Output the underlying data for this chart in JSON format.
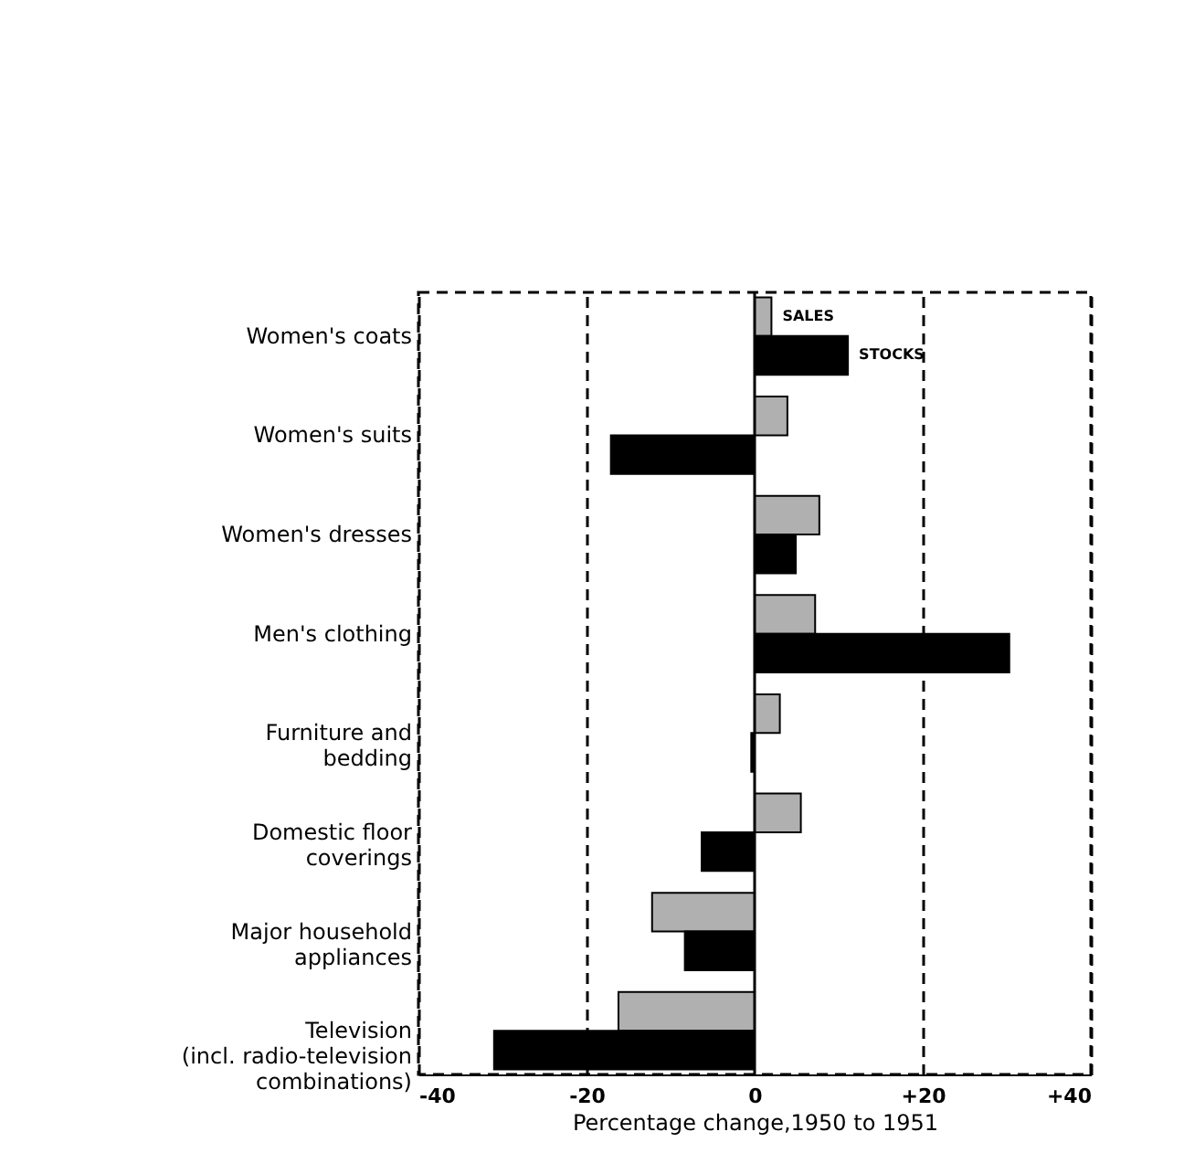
{
  "chart_data": {
    "type": "bar",
    "orientation": "horizontal",
    "xlabel": "Percentage change,1950 to 1951",
    "categories": [
      "Women's coats",
      "Women's suits",
      "Women's dresses",
      "Men's clothing",
      "Furniture and\nbedding",
      "Domestic floor\ncoverings",
      "Major household\nappliances",
      "Television\n(incl. radio-television\ncombinations)"
    ],
    "series": [
      {
        "name": "SALES",
        "color": "#b0b0b0",
        "values": [
          2.0,
          3.9,
          7.7,
          7.2,
          3.0,
          5.5,
          -12.2,
          -16.2
        ]
      },
      {
        "name": "STOCKS",
        "color": "#000000",
        "values": [
          11.1,
          -17.1,
          4.9,
          30.3,
          -0.4,
          -6.3,
          -8.3,
          -31.0
        ]
      }
    ],
    "xlim": [
      -40,
      40
    ],
    "xticks": [
      -40,
      -20,
      0,
      {
        "value": 20,
        "label": "+20"
      },
      {
        "value": 40,
        "label": "+40"
      }
    ],
    "grid": "x",
    "line_style": "dashed",
    "ref_lines": [
      {
        "axis": "x",
        "value": 0
      }
    ]
  }
}
